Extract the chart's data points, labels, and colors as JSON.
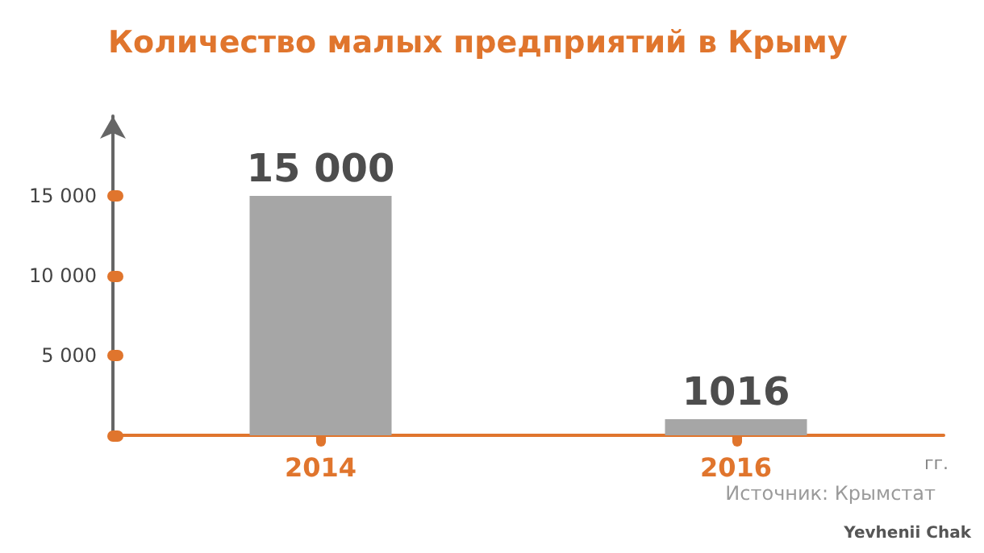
{
  "chart_data": {
    "type": "bar",
    "title": "Количество малых предприятий в Крыму",
    "xlabel": "гг.",
    "categories": [
      "2014",
      "2016"
    ],
    "values": [
      15000,
      1016
    ],
    "value_labels": [
      "15 000",
      "1016"
    ],
    "color": "#a6a6a6",
    "ylim": [
      0,
      20000
    ],
    "yticks": [
      {
        "value": 0,
        "label": null
      },
      {
        "value": 5000,
        "label": "5 000"
      },
      {
        "value": 10000,
        "label": "10 000"
      },
      {
        "value": 15000,
        "label": "15 000"
      }
    ],
    "grid": false,
    "annotations": [
      "Источник: Крымстат",
      "Yevhenii Chak"
    ]
  }
}
